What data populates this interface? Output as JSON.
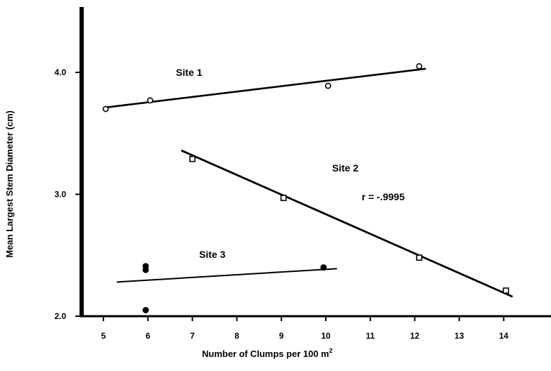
{
  "chart_data": {
    "type": "scatter",
    "title": "",
    "xlabel": "Number of Clumps per 100 m",
    "xlabel_superscript": "2",
    "ylabel": "Mean  Largest Stem  Diameter (cm)",
    "xlim": [
      4.5,
      14.2
    ],
    "ylim": [
      2.0,
      4.5
    ],
    "x_ticks": [
      "5",
      "6",
      "7",
      "8",
      "9",
      "10",
      "11",
      "12",
      "13",
      "14"
    ],
    "y_ticks": [
      "2.0",
      "3.0",
      "4.0"
    ],
    "grid": false,
    "legend": "none",
    "series": [
      {
        "name": "Site 1",
        "marker": "open-circle",
        "points": [
          [
            5.05,
            3.7
          ],
          [
            6.05,
            3.77
          ],
          [
            10.05,
            3.89
          ],
          [
            12.1,
            4.05
          ]
        ],
        "fit_line": [
          [
            5.0,
            3.71
          ],
          [
            12.25,
            4.03
          ]
        ]
      },
      {
        "name": "Site 2",
        "marker": "open-square",
        "points": [
          [
            7.0,
            3.29
          ],
          [
            9.05,
            2.97
          ],
          [
            12.1,
            2.48
          ],
          [
            14.05,
            2.21
          ]
        ],
        "fit_line": [
          [
            6.75,
            3.36
          ],
          [
            14.2,
            2.16
          ]
        ],
        "annotation": "r = -.9995"
      },
      {
        "name": "Site 3",
        "marker": "filled-circle",
        "points": [
          [
            5.95,
            2.41
          ],
          [
            5.95,
            2.38
          ],
          [
            5.95,
            2.05
          ],
          [
            9.95,
            2.4
          ]
        ],
        "fit_line": [
          [
            5.3,
            2.28
          ],
          [
            10.25,
            2.39
          ]
        ]
      }
    ]
  }
}
